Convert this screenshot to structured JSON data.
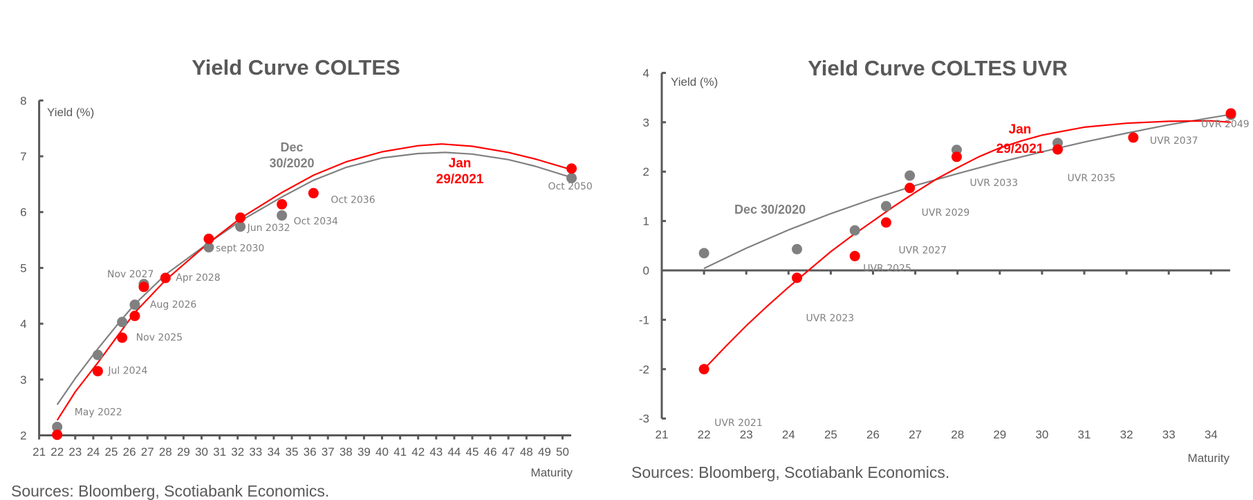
{
  "chart_data": [
    {
      "type": "scatter",
      "title": "Yield Curve COLTES",
      "ylabel": "Yield (%)",
      "xlabel": "Maturity",
      "xlim": [
        21,
        50.5
      ],
      "ylim": [
        2,
        8
      ],
      "xticks": [
        21,
        22,
        23,
        24,
        25,
        26,
        27,
        28,
        29,
        30,
        31,
        32,
        33,
        34,
        35,
        36,
        37,
        38,
        39,
        40,
        41,
        42,
        43,
        44,
        45,
        46,
        47,
        48,
        49,
        50
      ],
      "yticks": [
        2,
        3,
        4,
        5,
        6,
        7,
        8
      ],
      "grid": false,
      "series": [
        {
          "name": "Dec 30/2020",
          "label_lines": [
            "Dec",
            "30/2020"
          ],
          "color": "#808080",
          "points": [
            {
              "x": 22.0,
              "y": 2.15
            },
            {
              "x": 24.25,
              "y": 3.44
            },
            {
              "x": 25.6,
              "y": 4.03
            },
            {
              "x": 26.3,
              "y": 4.34
            },
            {
              "x": 26.8,
              "y": 4.71
            },
            {
              "x": 30.4,
              "y": 5.37
            },
            {
              "x": 32.15,
              "y": 5.74
            },
            {
              "x": 34.45,
              "y": 5.94
            },
            {
              "x": 50.5,
              "y": 6.61
            }
          ],
          "trend": [
            {
              "x": 22,
              "y": 2.55
            },
            {
              "x": 23,
              "y": 3.02
            },
            {
              "x": 24.25,
              "y": 3.55
            },
            {
              "x": 25.5,
              "y": 4.05
            },
            {
              "x": 26.3,
              "y": 4.35
            },
            {
              "x": 28,
              "y": 4.88
            },
            {
              "x": 30.4,
              "y": 5.45
            },
            {
              "x": 32.2,
              "y": 5.85
            },
            {
              "x": 34.5,
              "y": 6.28
            },
            {
              "x": 36.2,
              "y": 6.57
            },
            {
              "x": 38,
              "y": 6.8
            },
            {
              "x": 40,
              "y": 6.97
            },
            {
              "x": 42,
              "y": 7.05
            },
            {
              "x": 43.5,
              "y": 7.07
            },
            {
              "x": 45,
              "y": 7.04
            },
            {
              "x": 47,
              "y": 6.94
            },
            {
              "x": 48.5,
              "y": 6.82
            },
            {
              "x": 50.5,
              "y": 6.62
            }
          ]
        },
        {
          "name": "Jan 29/2021",
          "label_lines": [
            "Jan",
            "29/2021"
          ],
          "color": "#ff0000",
          "points": [
            {
              "x": 22.0,
              "y": 2.01,
              "label": "May 2022"
            },
            {
              "x": 24.25,
              "y": 3.15,
              "label": "Jul 2024"
            },
            {
              "x": 25.6,
              "y": 3.75,
              "label": "Nov 2025"
            },
            {
              "x": 26.3,
              "y": 4.14,
              "label": "Aug 2026"
            },
            {
              "x": 26.8,
              "y": 4.66,
              "label": "Nov 2027"
            },
            {
              "x": 28.0,
              "y": 4.82,
              "label": "Apr 2028"
            },
            {
              "x": 30.4,
              "y": 5.52,
              "label": "sept 2030"
            },
            {
              "x": 32.15,
              "y": 5.9,
              "label": "Jun 2032"
            },
            {
              "x": 34.45,
              "y": 6.14,
              "label": "Oct 2034"
            },
            {
              "x": 36.2,
              "y": 6.34,
              "label": "Oct 2036"
            },
            {
              "x": 50.5,
              "y": 6.78,
              "label": "Oct 2050"
            }
          ],
          "trend": [
            {
              "x": 22,
              "y": 2.27
            },
            {
              "x": 23,
              "y": 2.78
            },
            {
              "x": 24.25,
              "y": 3.3
            },
            {
              "x": 25.5,
              "y": 3.85
            },
            {
              "x": 26.3,
              "y": 4.2
            },
            {
              "x": 28,
              "y": 4.78
            },
            {
              "x": 30.4,
              "y": 5.45
            },
            {
              "x": 32.2,
              "y": 5.9
            },
            {
              "x": 34.5,
              "y": 6.36
            },
            {
              "x": 36.2,
              "y": 6.66
            },
            {
              "x": 38,
              "y": 6.9
            },
            {
              "x": 40,
              "y": 7.08
            },
            {
              "x": 42,
              "y": 7.19
            },
            {
              "x": 43.3,
              "y": 7.22
            },
            {
              "x": 45,
              "y": 7.18
            },
            {
              "x": 47,
              "y": 7.07
            },
            {
              "x": 48.5,
              "y": 6.95
            },
            {
              "x": 50.5,
              "y": 6.76
            }
          ]
        }
      ],
      "source": "Sources: Bloomberg, Scotiabank Economics."
    },
    {
      "type": "scatter",
      "title": "Yield Curve COLTES UVR",
      "ylabel": "Yield (%)",
      "xlabel": "Maturity",
      "xlim": [
        21,
        34.5
      ],
      "ylim": [
        -3,
        4
      ],
      "xticks": [
        21,
        22,
        23,
        24,
        25,
        26,
        27,
        28,
        29,
        30,
        31,
        32,
        33,
        34
      ],
      "yticks": [
        -3,
        -2,
        -1,
        0,
        1,
        2,
        3,
        4
      ],
      "grid": false,
      "series": [
        {
          "name": "Dec 30/2020",
          "label_lines": [
            "Dec 30/2020"
          ],
          "color": "#808080",
          "points": [
            {
              "x": 22.0,
              "y": 0.35
            },
            {
              "x": 24.2,
              "y": 0.43
            },
            {
              "x": 25.57,
              "y": 0.81
            },
            {
              "x": 26.31,
              "y": 1.3
            },
            {
              "x": 26.87,
              "y": 1.92
            },
            {
              "x": 27.98,
              "y": 2.44
            },
            {
              "x": 30.37,
              "y": 2.58
            },
            {
              "x": 34.47,
              "y": 3.15
            }
          ],
          "trend": [
            {
              "x": 22,
              "y": 0.04
            },
            {
              "x": 23,
              "y": 0.45
            },
            {
              "x": 24,
              "y": 0.82
            },
            {
              "x": 25,
              "y": 1.15
            },
            {
              "x": 26,
              "y": 1.45
            },
            {
              "x": 27,
              "y": 1.72
            },
            {
              "x": 28,
              "y": 1.96
            },
            {
              "x": 29,
              "y": 2.19
            },
            {
              "x": 30,
              "y": 2.4
            },
            {
              "x": 31,
              "y": 2.6
            },
            {
              "x": 32,
              "y": 2.78
            },
            {
              "x": 33,
              "y": 2.95
            },
            {
              "x": 34.47,
              "y": 3.16
            }
          ]
        },
        {
          "name": "Jan 29/2021",
          "label_lines": [
            "Jan",
            "29/2021"
          ],
          "color": "#ff0000",
          "points": [
            {
              "x": 22.0,
              "y": -2.0,
              "label": "UVR 2021"
            },
            {
              "x": 24.2,
              "y": -0.15,
              "label": "UVR 2023"
            },
            {
              "x": 25.57,
              "y": 0.29,
              "label": "UVR 2025"
            },
            {
              "x": 26.31,
              "y": 0.97,
              "label": "UVR 2027"
            },
            {
              "x": 26.87,
              "y": 1.67,
              "label": "UVR 2029"
            },
            {
              "x": 27.98,
              "y": 2.3,
              "label": "UVR 2033"
            },
            {
              "x": 30.37,
              "y": 2.45,
              "label": "UVR 2035"
            },
            {
              "x": 32.16,
              "y": 2.69,
              "label": "UVR 2037"
            },
            {
              "x": 34.47,
              "y": 3.18,
              "label": "UVR 2049"
            }
          ],
          "trend": [
            {
              "x": 22,
              "y": -2.0
            },
            {
              "x": 22.5,
              "y": -1.55
            },
            {
              "x": 23,
              "y": -1.12
            },
            {
              "x": 23.5,
              "y": -0.72
            },
            {
              "x": 24,
              "y": -0.34
            },
            {
              "x": 24.5,
              "y": 0.02
            },
            {
              "x": 25,
              "y": 0.38
            },
            {
              "x": 25.5,
              "y": 0.7
            },
            {
              "x": 26,
              "y": 1.0
            },
            {
              "x": 26.5,
              "y": 1.3
            },
            {
              "x": 27,
              "y": 1.58
            },
            {
              "x": 27.5,
              "y": 1.85
            },
            {
              "x": 28,
              "y": 2.08
            },
            {
              "x": 28.5,
              "y": 2.3
            },
            {
              "x": 29,
              "y": 2.48
            },
            {
              "x": 29.5,
              "y": 2.62
            },
            {
              "x": 30,
              "y": 2.74
            },
            {
              "x": 31,
              "y": 2.9
            },
            {
              "x": 32,
              "y": 2.98
            },
            {
              "x": 33,
              "y": 3.02
            },
            {
              "x": 34,
              "y": 3.03
            },
            {
              "x": 34.47,
              "y": 3.0
            }
          ]
        }
      ],
      "source": "Sources: Bloomberg, Scotiabank Economics."
    }
  ]
}
